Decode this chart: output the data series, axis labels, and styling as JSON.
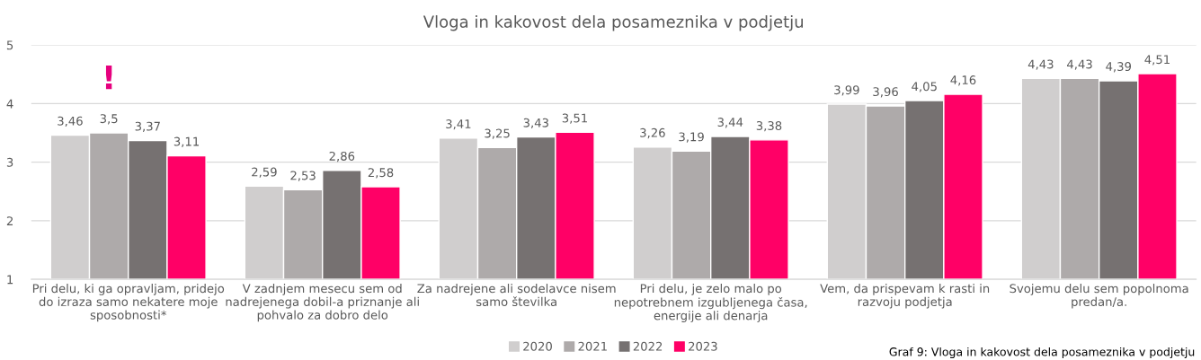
{
  "chart_data": {
    "type": "bar",
    "title": "Vloga in kakovost dela posameznika v podjetju",
    "categories": [
      "Pri delu, ki ga opravljam, pridejo\ndo izraza samo nekatere moje\nsposobnosti*",
      "V zadnjem mesecu sem od\nnadrejenega dobil-a priznanje ali\npohvalo za dobro delo",
      "Za nadrejene ali sodelavce nisem\nsamo številka",
      "Pri delu, je zelo malo po\nnepotrebnem izgubljenega časa,\nenergije ali denarja",
      "Vem, da prispevam k rasti in\nrazvoju podjetja",
      "Svojemu delu sem popolnoma\npredan/a."
    ],
    "series": [
      {
        "name": "2020",
        "color": "#d0cece",
        "values": [
          3.46,
          2.59,
          3.41,
          3.26,
          3.99,
          4.43
        ],
        "value_labels": [
          "3,46",
          "2,59",
          "3,41",
          "3,26",
          "3,99",
          "4,43"
        ]
      },
      {
        "name": "2021",
        "color": "#aeaaaa",
        "values": [
          3.5,
          2.53,
          3.25,
          3.19,
          3.96,
          4.43
        ],
        "value_labels": [
          "3,5",
          "2,53",
          "3,25",
          "3,19",
          "3,96",
          "4,43"
        ]
      },
      {
        "name": "2022",
        "color": "#767171",
        "values": [
          3.37,
          2.86,
          3.43,
          3.44,
          4.05,
          4.39
        ],
        "value_labels": [
          "3,37",
          "2,86",
          "3,43",
          "3,44",
          "4,05",
          "4,39"
        ]
      },
      {
        "name": "2023",
        "color": "#ff0066",
        "values": [
          3.11,
          2.58,
          3.51,
          3.38,
          4.16,
          4.51
        ],
        "value_labels": [
          "3,11",
          "2,58",
          "3,51",
          "3,38",
          "4,16",
          "4,51"
        ]
      }
    ],
    "ylim": [
      1,
      5
    ],
    "yticks": [
      1,
      2,
      3,
      4,
      5
    ],
    "grid": "y",
    "legend": "bottom",
    "annotations": [
      "!",
      "Graf 9: Vloga in kakovost dela posameznika v podjetju"
    ]
  }
}
